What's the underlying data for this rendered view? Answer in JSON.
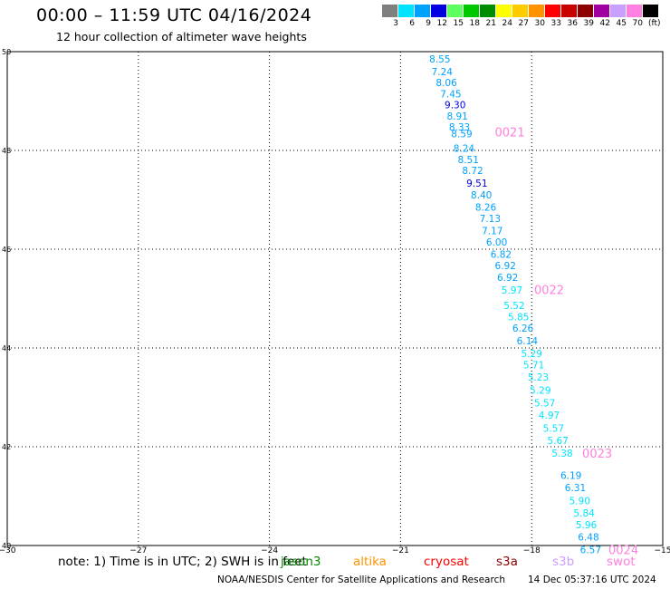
{
  "title": "00:00 – 11:59 UTC 04/16/2024",
  "subtitle": "12 hour collection of altimeter wave heights",
  "colorbar": {
    "unit": "(ft)",
    "levels": [
      {
        "label": "3",
        "color": "#7f7f7f"
      },
      {
        "label": "6",
        "color": "#00e5ff"
      },
      {
        "label": "9",
        "color": "#00a2ff"
      },
      {
        "label": "12",
        "color": "#0000e0"
      },
      {
        "label": "15",
        "color": "#60ff60"
      },
      {
        "label": "18",
        "color": "#00c800"
      },
      {
        "label": "21",
        "color": "#008c00"
      },
      {
        "label": "24",
        "color": "#ffff00"
      },
      {
        "label": "27",
        "color": "#ffcc00"
      },
      {
        "label": "30",
        "color": "#ff9400"
      },
      {
        "label": "33",
        "color": "#ff0000"
      },
      {
        "label": "36",
        "color": "#c80000"
      },
      {
        "label": "39",
        "color": "#8c0000"
      },
      {
        "label": "42",
        "color": "#a000a0"
      },
      {
        "label": "45",
        "color": "#c8a0ff"
      },
      {
        "label": "70",
        "color": "#ff80e0"
      },
      {
        "label": "",
        "color": "#000000"
      }
    ]
  },
  "chart_data": {
    "type": "scatter",
    "title": "00:00 – 11:59 UTC 04/16/2024",
    "subtitle": "12 hour collection of altimeter wave heights",
    "xlim": [
      -30,
      -15
    ],
    "ylim": [
      40,
      50
    ],
    "x_ticks": [
      -30,
      -27,
      -24,
      -21,
      -18,
      -15
    ],
    "x_tick_labels": [
      "−30",
      "−27",
      "−24",
      "−21",
      "−18",
      "−15"
    ],
    "y_ticks": [
      40,
      42,
      44,
      46,
      48,
      50
    ],
    "y_tick_labels": [
      "40",
      "42",
      "44",
      "46",
      "48",
      "50"
    ],
    "grid": true,
    "points": [
      {
        "lon": -20.1,
        "lat": 49.85,
        "label": "8.55",
        "color": "#00a2ff"
      },
      {
        "lon": -20.05,
        "lat": 49.6,
        "label": "7.24",
        "color": "#00a2ff"
      },
      {
        "lon": -19.95,
        "lat": 49.38,
        "label": "8.06",
        "color": "#00a2ff"
      },
      {
        "lon": -19.85,
        "lat": 49.15,
        "label": "7.45",
        "color": "#00a2ff"
      },
      {
        "lon": -19.75,
        "lat": 48.93,
        "label": "9.30",
        "color": "#0000e0"
      },
      {
        "lon": -19.7,
        "lat": 48.7,
        "label": "8.91",
        "color": "#00a2ff"
      },
      {
        "lon": -19.65,
        "lat": 48.48,
        "label": "8.33",
        "color": "#00a2ff"
      },
      {
        "lon": -19.6,
        "lat": 48.34,
        "label": "8.59",
        "color": "#00a2ff"
      },
      {
        "lon": -19.55,
        "lat": 48.05,
        "label": "8.24",
        "color": "#00a2ff"
      },
      {
        "lon": -19.45,
        "lat": 47.82,
        "label": "8.51",
        "color": "#00a2ff"
      },
      {
        "lon": -19.35,
        "lat": 47.6,
        "label": "8.72",
        "color": "#00a2ff"
      },
      {
        "lon": -19.25,
        "lat": 47.34,
        "label": "9.51",
        "color": "#0000e0"
      },
      {
        "lon": -19.15,
        "lat": 47.1,
        "label": "8.40",
        "color": "#00a2ff"
      },
      {
        "lon": -19.05,
        "lat": 46.85,
        "label": "8.26",
        "color": "#00a2ff"
      },
      {
        "lon": -18.95,
        "lat": 46.62,
        "label": "7.13",
        "color": "#00a2ff"
      },
      {
        "lon": -18.9,
        "lat": 46.38,
        "label": "7.17",
        "color": "#00a2ff"
      },
      {
        "lon": -18.8,
        "lat": 46.15,
        "label": "6.00",
        "color": "#00a2ff"
      },
      {
        "lon": -18.7,
        "lat": 45.9,
        "label": "6.82",
        "color": "#00a2ff"
      },
      {
        "lon": -18.6,
        "lat": 45.67,
        "label": "6.92",
        "color": "#00a2ff"
      },
      {
        "lon": -18.55,
        "lat": 45.43,
        "label": "6.92",
        "color": "#00a2ff"
      },
      {
        "lon": -18.45,
        "lat": 45.17,
        "label": "5.97",
        "color": "#00e5ff"
      },
      {
        "lon": -18.4,
        "lat": 44.86,
        "label": "5.52",
        "color": "#00e5ff"
      },
      {
        "lon": -18.3,
        "lat": 44.63,
        "label": "5.85",
        "color": "#00e5ff"
      },
      {
        "lon": -18.2,
        "lat": 44.4,
        "label": "6.26",
        "color": "#00a2ff"
      },
      {
        "lon": -18.1,
        "lat": 44.15,
        "label": "6.14",
        "color": "#00a2ff"
      },
      {
        "lon": -18.0,
        "lat": 43.89,
        "label": "5.29",
        "color": "#00e5ff"
      },
      {
        "lon": -17.95,
        "lat": 43.66,
        "label": "5.71",
        "color": "#00e5ff"
      },
      {
        "lon": -17.85,
        "lat": 43.41,
        "label": "5.23",
        "color": "#00e5ff"
      },
      {
        "lon": -17.8,
        "lat": 43.15,
        "label": "5.29",
        "color": "#00e5ff"
      },
      {
        "lon": -17.7,
        "lat": 42.89,
        "label": "5.57",
        "color": "#00e5ff"
      },
      {
        "lon": -17.6,
        "lat": 42.64,
        "label": "4.97",
        "color": "#00e5ff"
      },
      {
        "lon": -17.5,
        "lat": 42.38,
        "label": "5.57",
        "color": "#00e5ff"
      },
      {
        "lon": -17.4,
        "lat": 42.13,
        "label": "5.67",
        "color": "#00e5ff"
      },
      {
        "lon": -17.3,
        "lat": 41.87,
        "label": "5.38",
        "color": "#00e5ff"
      },
      {
        "lon": -17.1,
        "lat": 41.42,
        "label": "6.19",
        "color": "#00a2ff"
      },
      {
        "lon": -17.0,
        "lat": 41.17,
        "label": "6.31",
        "color": "#00a2ff"
      },
      {
        "lon": -16.9,
        "lat": 40.91,
        "label": "5.90",
        "color": "#00e5ff"
      },
      {
        "lon": -16.8,
        "lat": 40.66,
        "label": "5.84",
        "color": "#00e5ff"
      },
      {
        "lon": -16.75,
        "lat": 40.42,
        "label": "5.96",
        "color": "#00e5ff"
      },
      {
        "lon": -16.7,
        "lat": 40.17,
        "label": "6.48",
        "color": "#00a2ff"
      },
      {
        "lon": -16.65,
        "lat": 39.92,
        "label": "6.57",
        "color": "#00a2ff"
      }
    ],
    "annotations": [
      {
        "lon": -18.5,
        "lat": 48.38,
        "text": "0021",
        "color": "#ff80e0"
      },
      {
        "lon": -17.6,
        "lat": 45.18,
        "text": "0022",
        "color": "#ff80e0"
      },
      {
        "lon": -16.5,
        "lat": 41.87,
        "text": "0023",
        "color": "#ff80e0"
      },
      {
        "lon": -15.9,
        "lat": 39.92,
        "text": "0024",
        "color": "#ff80e0"
      }
    ]
  },
  "footer": {
    "note": "note: 1) Time is in UTC; 2) SWH is in feet",
    "satellites": [
      {
        "name": "jason3",
        "color": "#008c00"
      },
      {
        "name": "altika",
        "color": "#ff9400"
      },
      {
        "name": "cryosat",
        "color": "#ff0000"
      },
      {
        "name": "s3a",
        "color": "#8c0000"
      },
      {
        "name": "s3b",
        "color": "#c8a0ff"
      },
      {
        "name": "swot",
        "color": "#ff80e0"
      }
    ],
    "credit": "NOAA/NESDIS Center for Satellite Applications and Research",
    "generated": "14 Dec 05:37:16 UTC 2024"
  }
}
